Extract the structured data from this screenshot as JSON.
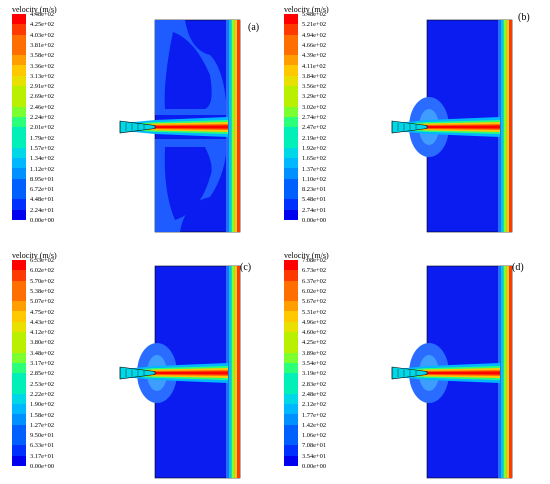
{
  "palette": [
    "#ff0000",
    "#ff3a00",
    "#ff6e00",
    "#ff9e00",
    "#ffc800",
    "#e8e000",
    "#b8f000",
    "#7cff30",
    "#2cff7a",
    "#00f0b8",
    "#00d8e8",
    "#00b8ff",
    "#0090ff",
    "#0060ff",
    "#0030ff",
    "#0000f0"
  ],
  "panels": [
    {
      "label": "(a)",
      "legend_title": "velocity (m/s)",
      "ticks": [
        "4.48e+02",
        "4.25e+02",
        "4.03e+02",
        "3.81e+02",
        "3.58e+02",
        "3.36e+02",
        "3.13e+02",
        "2.91e+02",
        "2.69e+02",
        "2.46e+02",
        "2.24e+02",
        "2.01e+02",
        "1.79e+02",
        "1.57e+02",
        "1.34e+02",
        "1.12e+02",
        "8.95e+01",
        "6.72e+01",
        "4.48e+01",
        "2.24e+01",
        "0.00e+00"
      ]
    },
    {
      "label": "(b)",
      "legend_title": "velocity (m/s)",
      "ticks": [
        "5.48e+02",
        "5.21e+02",
        "4.94e+02",
        "4.66e+02",
        "4.39e+02",
        "4.11e+02",
        "3.84e+02",
        "3.56e+02",
        "3.29e+02",
        "3.02e+02",
        "2.74e+02",
        "2.47e+02",
        "2.19e+02",
        "1.92e+02",
        "1.65e+02",
        "1.37e+02",
        "1.10e+02",
        "8.23e+01",
        "5.48e+01",
        "2.74e+01",
        "0.00e+00"
      ]
    },
    {
      "label": "(c)",
      "legend_title": "velocity (m/s)",
      "ticks": [
        "6.33e+02",
        "6.02e+02",
        "5.70e+02",
        "5.38e+02",
        "5.07e+02",
        "4.75e+02",
        "4.43e+02",
        "4.12e+02",
        "3.80e+02",
        "3.48e+02",
        "3.17e+02",
        "2.85e+02",
        "2.53e+02",
        "2.22e+02",
        "1.90e+02",
        "1.58e+02",
        "1.27e+02",
        "9.50e+01",
        "6.33e+01",
        "3.17e+01",
        "0.00e+00"
      ]
    },
    {
      "label": "(d)",
      "legend_title": "velocity (m/s)",
      "ticks": [
        "7.08e+02",
        "6.73e+02",
        "6.37e+02",
        "6.02e+02",
        "5.67e+02",
        "5.31e+02",
        "4.96e+02",
        "4.60e+02",
        "4.25e+02",
        "3.89e+02",
        "3.54e+02",
        "3.19e+02",
        "2.83e+02",
        "2.48e+02",
        "2.12e+02",
        "1.77e+02",
        "1.42e+02",
        "1.06e+02",
        "7.08e+01",
        "3.54e+01",
        "0.00e+00"
      ]
    }
  ]
}
